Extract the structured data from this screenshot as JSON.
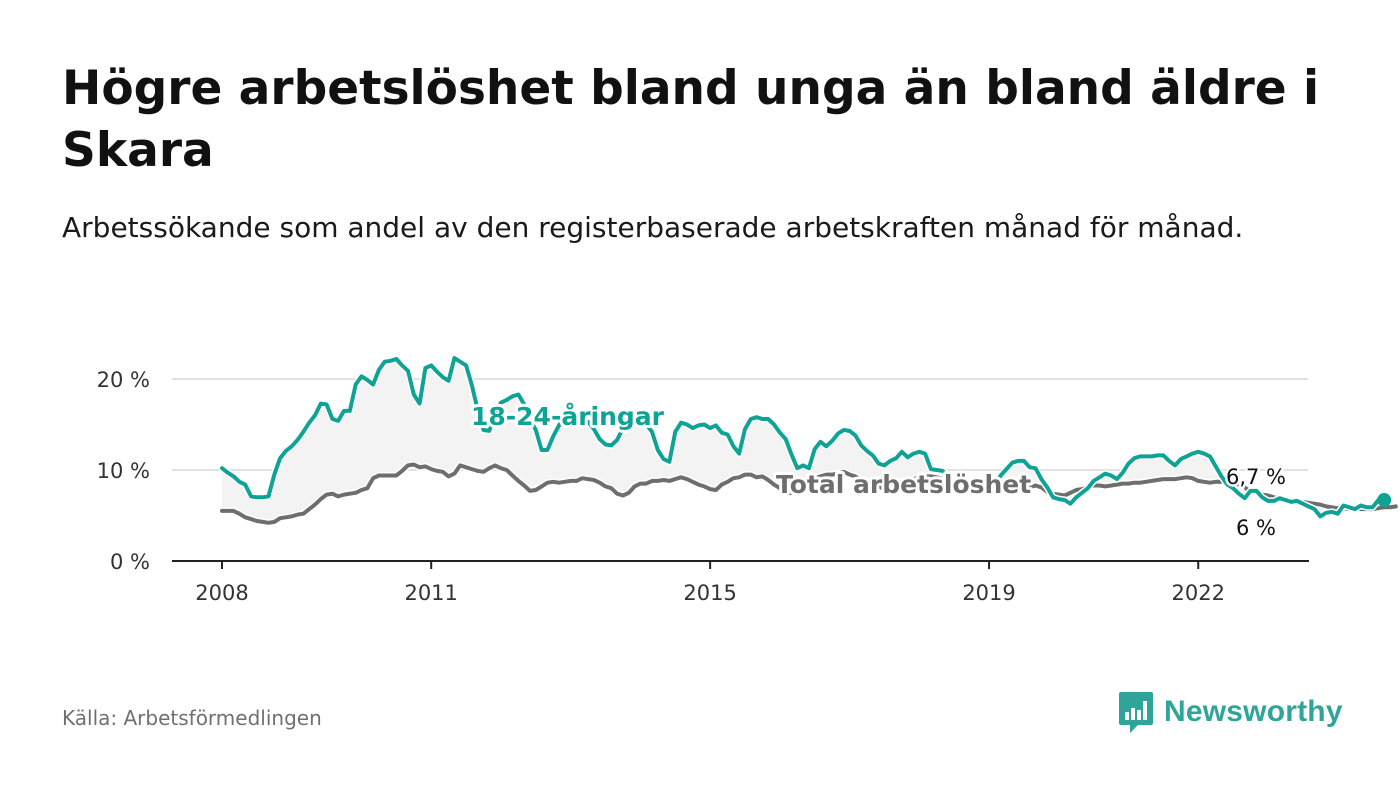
{
  "title": "Högre arbetslöshet bland unga än bland äldre i Skara",
  "subtitle": "Arbetssökande som andel av den registerbaserade arbetskraften månad för månad.",
  "source": "Källa: Arbetsförmedlingen",
  "brand": "Newsworthy",
  "colors": {
    "youth": "#0fa396",
    "total": "#6e6e6e",
    "band": "#f3f3f3",
    "grid": "#d9d9d9",
    "axis": "#222222",
    "brand": "#2fa59a"
  },
  "chart_data": {
    "type": "line",
    "title": "Högre arbetslöshet bland unga än bland äldre i Skara",
    "xlabel": "",
    "ylabel": "",
    "x_start": "2008-01",
    "x_step": "month",
    "xlim": [
      2008.0,
      2022.9
    ],
    "ylim": [
      0,
      20
    ],
    "yticks": [
      0,
      10,
      20
    ],
    "ytick_labels": [
      "0 %",
      "10 %",
      "20 %"
    ],
    "xticks": [
      2008,
      2011,
      2015,
      2019,
      2022
    ],
    "xtick_labels": [
      "2008",
      "2011",
      "2015",
      "2019",
      "2022"
    ],
    "grid": true,
    "series": [
      {
        "name": "18-24-åringar",
        "label": "18-24-åringar",
        "end_label": "6,7 %",
        "values": [
          10.2,
          9.7,
          9.3,
          8.7,
          8.4,
          7.1,
          7.0,
          7.0,
          7.1,
          9.5,
          11.3,
          12.1,
          12.6,
          13.3,
          14.2,
          15.2,
          16.0,
          17.3,
          17.2,
          15.6,
          15.4,
          16.5,
          16.5,
          19.4,
          20.3,
          19.9,
          19.4,
          21.0,
          21.9,
          22.0,
          22.2,
          21.5,
          20.9,
          18.3,
          17.3,
          21.2,
          21.5,
          20.8,
          20.2,
          19.8,
          22.3,
          21.9,
          21.5,
          19.3,
          16.6,
          14.4,
          14.3,
          16.2,
          17.4,
          17.7,
          18.1,
          18.3,
          17.2,
          15.6,
          14.4,
          12.2,
          12.2,
          13.7,
          14.9,
          16.0,
          16.0,
          15.7,
          15.4,
          15.3,
          14.5,
          13.4,
          12.8,
          12.7,
          13.3,
          14.6,
          15.3,
          15.6,
          15.6,
          15.0,
          14.2,
          12.2,
          11.2,
          10.9,
          14.2,
          15.2,
          15.0,
          14.6,
          14.9,
          15.0,
          14.6,
          14.9,
          14.1,
          13.9,
          12.6,
          11.8,
          14.5,
          15.6,
          15.8,
          15.6,
          15.6,
          15.0,
          14.1,
          13.4,
          11.7,
          10.2,
          10.5,
          10.2,
          12.3,
          13.1,
          12.6,
          13.2,
          14.0,
          14.4,
          14.3,
          13.8,
          12.7,
          12.1,
          11.6,
          10.7,
          10.5,
          11.0,
          11.3,
          12.0,
          11.4,
          11.8,
          12.0,
          11.8,
          10.1,
          10.0,
          9.9,
          9.4,
          8.5,
          8.3,
          7.9,
          7.6,
          7.4,
          8.1,
          8.2,
          8.4,
          9.4,
          10.1,
          10.8,
          11.0,
          11.0,
          10.3,
          10.2,
          9.0,
          8.1,
          7.0,
          6.8,
          6.7,
          6.3,
          7.0,
          7.5,
          8.0,
          8.8,
          9.2,
          9.6,
          9.4,
          9.0,
          9.7,
          10.7,
          11.3,
          11.5,
          11.5,
          11.5,
          11.6,
          11.6,
          11.0,
          10.5,
          11.2,
          11.5,
          11.8,
          12.0,
          11.8,
          11.5,
          10.4,
          9.3,
          8.4,
          8.0,
          7.4,
          6.9,
          7.7,
          7.7,
          7.0,
          6.6,
          6.6,
          6.9,
          6.7,
          6.5,
          6.6,
          6.3,
          6.0,
          5.7,
          4.9,
          5.3,
          5.4,
          5.2,
          6.1,
          5.9,
          5.7,
          6.1,
          5.9,
          5.9,
          6.7,
          6.7
        ]
      },
      {
        "name": "Total arbetslöshet",
        "label": "Total arbetslöshet",
        "end_label": "6 %",
        "values": [
          5.5,
          5.5,
          5.5,
          5.2,
          4.8,
          4.6,
          4.4,
          4.3,
          4.2,
          4.3,
          4.7,
          4.8,
          4.9,
          5.1,
          5.2,
          5.7,
          6.2,
          6.8,
          7.3,
          7.4,
          7.1,
          7.3,
          7.4,
          7.5,
          7.8,
          8.0,
          9.1,
          9.4,
          9.4,
          9.4,
          9.4,
          9.9,
          10.5,
          10.6,
          10.3,
          10.4,
          10.1,
          9.9,
          9.8,
          9.3,
          9.6,
          10.5,
          10.3,
          10.1,
          9.9,
          9.8,
          10.2,
          10.5,
          10.2,
          10.0,
          9.4,
          8.8,
          8.3,
          7.7,
          7.8,
          8.2,
          8.6,
          8.7,
          8.6,
          8.7,
          8.8,
          8.8,
          9.1,
          9.0,
          8.9,
          8.6,
          8.2,
          8.0,
          7.4,
          7.2,
          7.5,
          8.2,
          8.5,
          8.5,
          8.8,
          8.8,
          8.9,
          8.8,
          9.0,
          9.2,
          9.0,
          8.7,
          8.4,
          8.2,
          7.9,
          7.8,
          8.4,
          8.7,
          9.1,
          9.2,
          9.5,
          9.5,
          9.2,
          9.3,
          8.9,
          8.4,
          8.0,
          7.4,
          7.5,
          8.1,
          8.5,
          8.8,
          9.1,
          9.3,
          9.5,
          9.5,
          9.6,
          9.8,
          9.5,
          9.3,
          8.9,
          8.5,
          8.3,
          8.3,
          7.8,
          8.0,
          8.3,
          8.7,
          8.9,
          9.0,
          9.2,
          9.3,
          9.3,
          9.2,
          9.0,
          8.9,
          8.8,
          8.7,
          8.8,
          8.7,
          8.6,
          8.5,
          8.5,
          8.1,
          7.8,
          7.6,
          7.7,
          7.9,
          8.0,
          8.1,
          8.3,
          8.1,
          7.6,
          7.4,
          7.3,
          7.2,
          7.5,
          7.8,
          7.9,
          8.1,
          8.3,
          8.3,
          8.2,
          8.3,
          8.4,
          8.5,
          8.5,
          8.6,
          8.6,
          8.7,
          8.8,
          8.9,
          9.0,
          9.0,
          9.0,
          9.1,
          9.2,
          9.1,
          8.8,
          8.7,
          8.6,
          8.7,
          8.7,
          8.6,
          8.5,
          8.4,
          8.1,
          7.6,
          7.5,
          7.3,
          7.2,
          7.0,
          6.9,
          6.8,
          6.7,
          6.6,
          6.5,
          6.4,
          6.3,
          6.2,
          6.0,
          5.9,
          5.8,
          5.8,
          5.7,
          5.7,
          5.7,
          5.7,
          5.7,
          5.8,
          5.9,
          5.9,
          6.0
        ]
      }
    ]
  }
}
